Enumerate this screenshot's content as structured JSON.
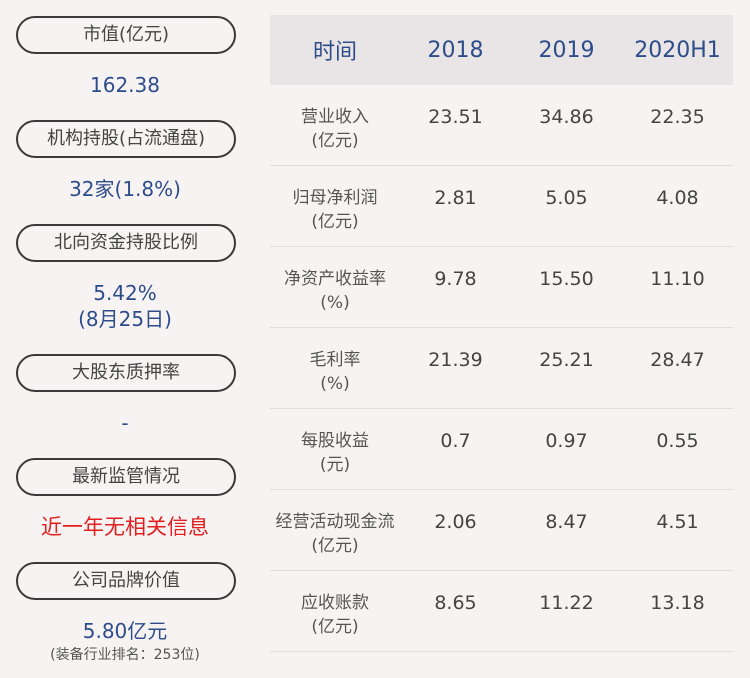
{
  "left_panel": {
    "items": [
      {
        "label": "市值(亿元)",
        "value": "162.38"
      },
      {
        "label": "机构持股(占流通盘)",
        "value": "32家(1.8%)"
      },
      {
        "label": "北向资金持股比例",
        "value_line1": "5.42%",
        "value_line2": "(8月25日)"
      },
      {
        "label": "大股东质押率",
        "value": "-"
      },
      {
        "label": "最新监管情况",
        "value": "近一年无相关信息"
      },
      {
        "label": "公司品牌价值",
        "value": "5.80亿元",
        "note": "(装备行业排名：253位)"
      }
    ]
  },
  "table": {
    "headers": [
      "时间",
      "2018",
      "2019",
      "2020H1"
    ],
    "rows": [
      {
        "name": "营业收入",
        "unit": "(亿元)",
        "values": [
          "23.51",
          "34.86",
          "22.35"
        ]
      },
      {
        "name": "归母净利润",
        "unit": "(亿元)",
        "values": [
          "2.81",
          "5.05",
          "4.08"
        ]
      },
      {
        "name": "净资产收益率",
        "unit": "(%)",
        "values": [
          "9.78",
          "15.50",
          "11.10"
        ]
      },
      {
        "name": "毛利率",
        "unit": "(%)",
        "values": [
          "21.39",
          "25.21",
          "28.47"
        ]
      },
      {
        "name": "每股收益",
        "unit": "(元)",
        "values": [
          "0.7",
          "0.97",
          "0.55"
        ]
      },
      {
        "name": "经营活动现金流",
        "unit": "(亿元)",
        "values": [
          "2.06",
          "8.47",
          "4.51"
        ]
      },
      {
        "name": "应收账款",
        "unit": "(亿元)",
        "values": [
          "8.65",
          "11.22",
          "13.18"
        ]
      }
    ]
  },
  "colors": {
    "background": "#f7f3f3",
    "header_bg": "#e9e4e5",
    "accent_blue": "#2d4d8a",
    "alert_red": "#e0201f"
  }
}
